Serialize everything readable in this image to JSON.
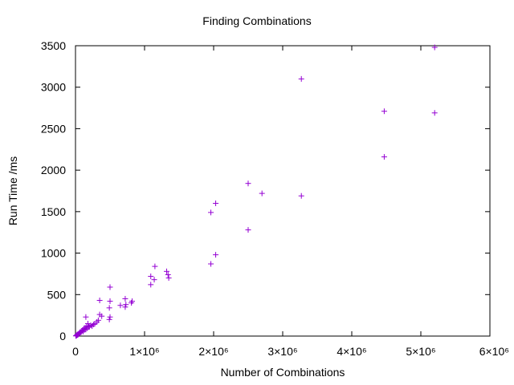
{
  "chart_data": {
    "type": "scatter",
    "title": "Finding Combinations",
    "xlabel": "Number of Combinations",
    "ylabel": "Run Time /ms",
    "xlim": [
      0,
      6000000
    ],
    "ylim": [
      0,
      3500
    ],
    "xticks": [
      {
        "value": 0,
        "label": "0"
      },
      {
        "value": 1000000,
        "label": "1×10⁶"
      },
      {
        "value": 2000000,
        "label": "2×10⁶"
      },
      {
        "value": 3000000,
        "label": "3×10⁶"
      },
      {
        "value": 4000000,
        "label": "4×10⁶"
      },
      {
        "value": 5000000,
        "label": "5×10⁶"
      },
      {
        "value": 6000000,
        "label": "6×10⁶"
      }
    ],
    "yticks": [
      {
        "value": 0,
        "label": "0"
      },
      {
        "value": 500,
        "label": "500"
      },
      {
        "value": 1000,
        "label": "1000"
      },
      {
        "value": 1500,
        "label": "1500"
      },
      {
        "value": 2000,
        "label": "2000"
      },
      {
        "value": 2500,
        "label": "2500"
      },
      {
        "value": 3000,
        "label": "3000"
      },
      {
        "value": 3500,
        "label": "3500"
      }
    ],
    "grid": false,
    "marker": "+",
    "color": "#9400d3",
    "series": [
      {
        "points": [
          [
            5200000,
            3480
          ],
          [
            3270000,
            3100
          ],
          [
            4470000,
            2710
          ],
          [
            5200000,
            2690
          ],
          [
            4470000,
            2160
          ],
          [
            2500000,
            1840
          ],
          [
            2700000,
            1720
          ],
          [
            3270000,
            1690
          ],
          [
            2030000,
            1600
          ],
          [
            1960000,
            1490
          ],
          [
            2500000,
            1280
          ],
          [
            2030000,
            980
          ],
          [
            1960000,
            870
          ],
          [
            1150000,
            840
          ],
          [
            1320000,
            780
          ],
          [
            1340000,
            740
          ],
          [
            1350000,
            700
          ],
          [
            1090000,
            720
          ],
          [
            1140000,
            680
          ],
          [
            1090000,
            620
          ],
          [
            500000,
            590
          ],
          [
            500000,
            420
          ],
          [
            350000,
            430
          ],
          [
            820000,
            420
          ],
          [
            810000,
            400
          ],
          [
            720000,
            450
          ],
          [
            730000,
            380
          ],
          [
            650000,
            370
          ],
          [
            720000,
            350
          ],
          [
            490000,
            340
          ],
          [
            350000,
            260
          ],
          [
            380000,
            240
          ],
          [
            500000,
            230
          ],
          [
            490000,
            200
          ],
          [
            150000,
            230
          ],
          [
            330000,
            190
          ],
          [
            310000,
            170
          ],
          [
            280000,
            150
          ],
          [
            220000,
            130
          ],
          [
            180000,
            150
          ],
          [
            160000,
            120
          ],
          [
            200000,
            110
          ],
          [
            140000,
            100
          ],
          [
            120000,
            90
          ],
          [
            150000,
            80
          ],
          [
            100000,
            70
          ],
          [
            90000,
            60
          ],
          [
            70000,
            50
          ],
          [
            60000,
            40
          ],
          [
            50000,
            30
          ],
          [
            40000,
            20
          ],
          [
            30000,
            15
          ],
          [
            20000,
            10
          ],
          [
            10000,
            5
          ],
          [
            5000,
            2
          ],
          [
            15000,
            8
          ],
          [
            25000,
            18
          ],
          [
            45000,
            25
          ],
          [
            80000,
            45
          ],
          [
            110000,
            55
          ],
          [
            130000,
            75
          ],
          [
            170000,
            95
          ],
          [
            260000,
            140
          ],
          [
            240000,
            120
          ],
          [
            190000,
            110
          ]
        ]
      }
    ]
  }
}
